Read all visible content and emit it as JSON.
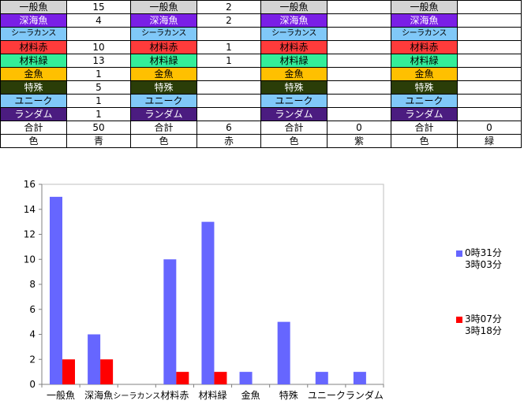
{
  "table": {
    "groups": [
      {
        "rows": [
          {
            "label": "一般魚",
            "value": "15",
            "bg": "#d4d4d4",
            "fg": "#000000"
          },
          {
            "label": "深海魚",
            "value": "4",
            "bg": "#7a1fe6",
            "fg": "#ffffff"
          },
          {
            "label": "シーラカンス",
            "value": "",
            "bg": "#80c8f8",
            "fg": "#000000"
          },
          {
            "label": "材料赤",
            "value": "10",
            "bg": "#ff3b3b",
            "fg": "#000000"
          },
          {
            "label": "材料緑",
            "value": "13",
            "bg": "#33ee99",
            "fg": "#000000"
          },
          {
            "label": "金魚",
            "value": "1",
            "bg": "#ffc000",
            "fg": "#000000"
          },
          {
            "label": "特殊",
            "value": "5",
            "bg": "#2a3d08",
            "fg": "#ffffff"
          },
          {
            "label": "ユニーク",
            "value": "1",
            "bg": "#80c8f8",
            "fg": "#000000"
          },
          {
            "label": "ランダム",
            "value": "1",
            "bg": "#4b1c80",
            "fg": "#ffffff"
          }
        ],
        "total_label": "合計",
        "total_value": "50",
        "color_label": "色",
        "color_value": "青"
      },
      {
        "rows": [
          {
            "label": "一般魚",
            "value": "2",
            "bg": "#d4d4d4",
            "fg": "#000000"
          },
          {
            "label": "深海魚",
            "value": "2",
            "bg": "#7a1fe6",
            "fg": "#ffffff"
          },
          {
            "label": "シーラカンス",
            "value": "",
            "bg": "#80c8f8",
            "fg": "#000000"
          },
          {
            "label": "材料赤",
            "value": "1",
            "bg": "#ff3b3b",
            "fg": "#000000"
          },
          {
            "label": "材料緑",
            "value": "1",
            "bg": "#33ee99",
            "fg": "#000000"
          },
          {
            "label": "金魚",
            "value": "",
            "bg": "#ffc000",
            "fg": "#000000"
          },
          {
            "label": "特殊",
            "value": "",
            "bg": "#2a3d08",
            "fg": "#ffffff"
          },
          {
            "label": "ユニーク",
            "value": "",
            "bg": "#80c8f8",
            "fg": "#000000"
          },
          {
            "label": "ランダム",
            "value": "",
            "bg": "#4b1c80",
            "fg": "#ffffff"
          }
        ],
        "total_label": "合計",
        "total_value": "6",
        "color_label": "色",
        "color_value": "赤"
      },
      {
        "rows": [
          {
            "label": "一般魚",
            "value": "",
            "bg": "#d4d4d4",
            "fg": "#000000"
          },
          {
            "label": "深海魚",
            "value": "",
            "bg": "#7a1fe6",
            "fg": "#ffffff"
          },
          {
            "label": "シーラカンス",
            "value": "",
            "bg": "#80c8f8",
            "fg": "#000000"
          },
          {
            "label": "材料赤",
            "value": "",
            "bg": "#ff3b3b",
            "fg": "#000000"
          },
          {
            "label": "材料緑",
            "value": "",
            "bg": "#33ee99",
            "fg": "#000000"
          },
          {
            "label": "金魚",
            "value": "",
            "bg": "#ffc000",
            "fg": "#000000"
          },
          {
            "label": "特殊",
            "value": "",
            "bg": "#2a3d08",
            "fg": "#ffffff"
          },
          {
            "label": "ユニーク",
            "value": "",
            "bg": "#80c8f8",
            "fg": "#000000"
          },
          {
            "label": "ランダム",
            "value": "",
            "bg": "#4b1c80",
            "fg": "#ffffff"
          }
        ],
        "total_label": "合計",
        "total_value": "0",
        "color_label": "色",
        "color_value": "紫"
      },
      {
        "rows": [
          {
            "label": "一般魚",
            "value": "",
            "bg": "#d4d4d4",
            "fg": "#000000"
          },
          {
            "label": "深海魚",
            "value": "",
            "bg": "#7a1fe6",
            "fg": "#ffffff"
          },
          {
            "label": "シーラカンス",
            "value": "",
            "bg": "#80c8f8",
            "fg": "#000000"
          },
          {
            "label": "材料赤",
            "value": "",
            "bg": "#ff3b3b",
            "fg": "#000000"
          },
          {
            "label": "材料緑",
            "value": "",
            "bg": "#33ee99",
            "fg": "#000000"
          },
          {
            "label": "金魚",
            "value": "",
            "bg": "#ffc000",
            "fg": "#000000"
          },
          {
            "label": "特殊",
            "value": "",
            "bg": "#2a3d08",
            "fg": "#ffffff"
          },
          {
            "label": "ユニーク",
            "value": "",
            "bg": "#80c8f8",
            "fg": "#000000"
          },
          {
            "label": "ランダム",
            "value": "",
            "bg": "#4b1c80",
            "fg": "#ffffff"
          }
        ],
        "total_label": "合計",
        "total_value": "0",
        "color_label": "色",
        "color_value": "緑"
      }
    ]
  },
  "chart_data": {
    "type": "bar",
    "categories": [
      "一般魚",
      "深海魚",
      "シーラカンス",
      "材料赤",
      "材料緑",
      "金魚",
      "特殊",
      "ユニーク",
      "ランダム"
    ],
    "series": [
      {
        "name": "0時31分\n3時03分",
        "values": [
          15,
          4,
          0,
          10,
          13,
          1,
          5,
          1,
          1
        ],
        "color": "#6666ff"
      },
      {
        "name": "3時07分\n3時18分",
        "values": [
          2,
          2,
          0,
          1,
          1,
          0,
          0,
          0,
          0
        ],
        "color": "#ff0000"
      }
    ],
    "title": "",
    "xlabel": "",
    "ylabel": "",
    "ylim": [
      0,
      16
    ],
    "yticks": [
      0,
      2,
      4,
      6,
      8,
      10,
      12,
      14,
      16
    ],
    "grid": false,
    "legend_position": "right"
  }
}
